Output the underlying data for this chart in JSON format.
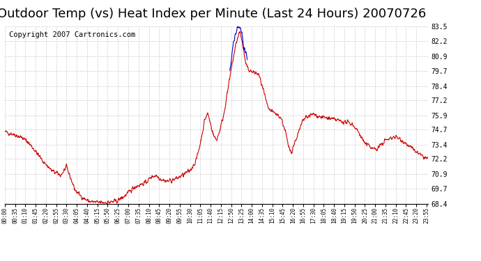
{
  "title": "Outdoor Temp (vs) Heat Index per Minute (Last 24 Hours) 20070726",
  "copyright_text": "Copyright 2007 Cartronics.com",
  "title_fontsize": 13,
  "copyright_fontsize": 7.5,
  "bg_color": "#ffffff",
  "plot_bg_color": "#ffffff",
  "grid_color": "#cccccc",
  "line_color_red": "#cc0000",
  "line_color_blue": "#0000cc",
  "ylabel_right_values": [
    68.4,
    69.7,
    70.9,
    72.2,
    73.4,
    74.7,
    75.9,
    77.2,
    78.4,
    79.7,
    80.9,
    82.2,
    83.5
  ],
  "ymin": 68.4,
  "ymax": 83.5,
  "xtick_labels": [
    "00:00",
    "00:35",
    "01:10",
    "01:45",
    "02:20",
    "02:55",
    "03:30",
    "04:05",
    "04:40",
    "05:15",
    "05:50",
    "06:25",
    "07:00",
    "07:35",
    "08:10",
    "08:45",
    "09:20",
    "09:55",
    "10:30",
    "11:05",
    "11:40",
    "12:15",
    "12:50",
    "13:25",
    "14:00",
    "14:35",
    "15:10",
    "15:45",
    "16:20",
    "16:55",
    "17:30",
    "18:05",
    "18:40",
    "19:15",
    "19:50",
    "20:25",
    "21:00",
    "21:35",
    "22:10",
    "22:45",
    "23:20",
    "23:55"
  ]
}
